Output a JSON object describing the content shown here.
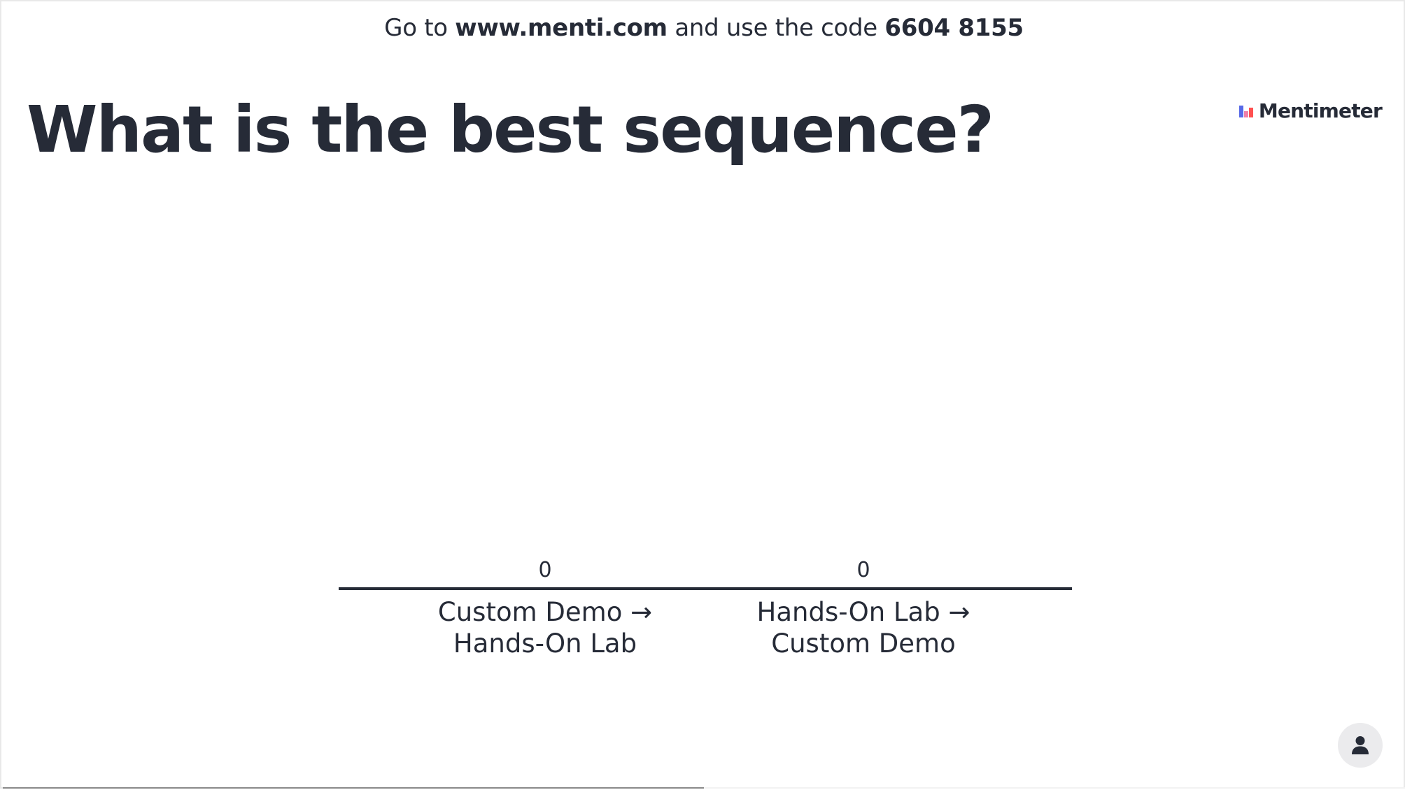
{
  "join": {
    "prefix": "Go to",
    "url": "www.menti.com",
    "middle": "and use the code",
    "code": "6604 8155"
  },
  "question": {
    "title": "What is the best sequence?"
  },
  "brand": {
    "name": "Mentimeter",
    "logo_icon": "mentimeter-bar-logo-icon"
  },
  "chart_data": {
    "type": "bar",
    "categories": [
      [
        "Custom Demo →",
        "Hands-On Lab"
      ],
      [
        "Hands-On Lab →",
        "Custom Demo"
      ]
    ],
    "values": [
      0,
      0
    ]
  },
  "controls": {
    "participants_icon": "person-icon"
  },
  "progress": {
    "fraction": 0.5
  },
  "colors": {
    "text": "#262b37",
    "logo_blue": "#5769e7",
    "logo_pink": "#f07fa8",
    "logo_red": "#ff5050"
  }
}
